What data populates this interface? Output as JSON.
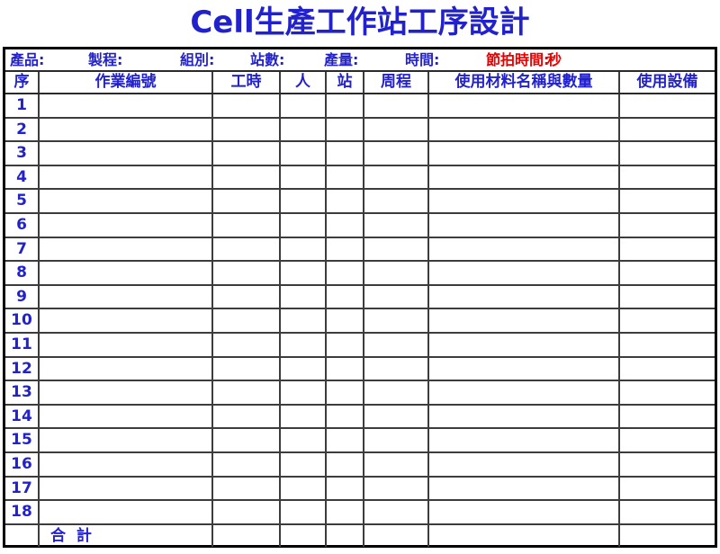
{
  "title": "Cell生產工作站工序設計",
  "info_bar": {
    "fields": [
      {
        "label": "產品:"
      },
      {
        "label": "製程:"
      },
      {
        "label": "組別:"
      },
      {
        "label": "站數:"
      },
      {
        "label": "產量:"
      },
      {
        "label": "時間:"
      }
    ],
    "takt_label": "節拍時間:",
    "takt_unit": "秒"
  },
  "table": {
    "columns": [
      "序",
      "作業編號",
      "工時",
      "人",
      "站",
      "周程",
      "使用材料名稱與數量",
      "使用設備"
    ],
    "row_numbers": [
      "1",
      "2",
      "3",
      "4",
      "5",
      "6",
      "7",
      "8",
      "9",
      "10",
      "11",
      "12",
      "13",
      "14",
      "15",
      "16",
      "17",
      "18"
    ],
    "row_cells_empty": [
      "",
      "",
      "",
      "",
      "",
      "",
      ""
    ],
    "total_label": "合  計"
  },
  "colors": {
    "accent_blue": "#2222CC",
    "accent_red": "#E80000",
    "grid_line": "#3c3c3c",
    "outer_border": "#000000"
  }
}
